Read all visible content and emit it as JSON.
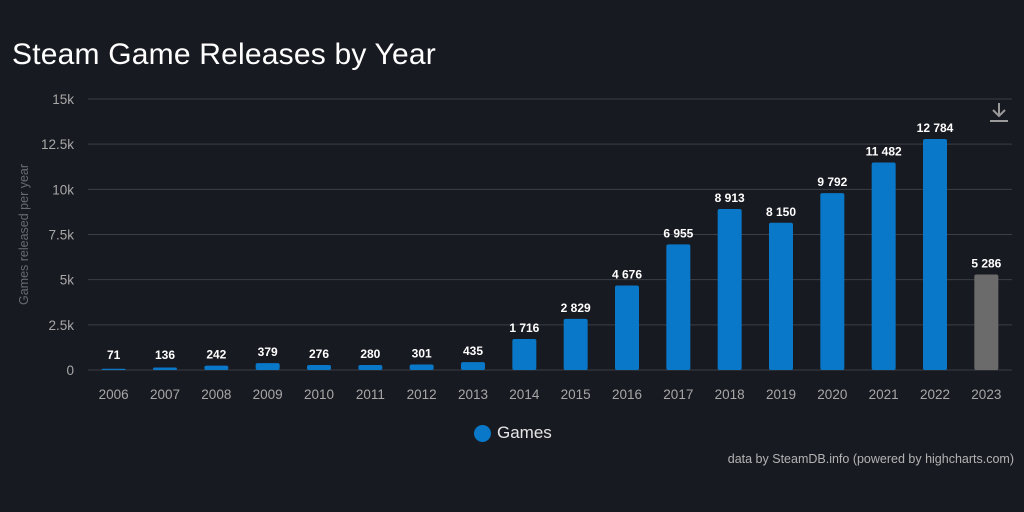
{
  "title": "Steam Game Releases by Year",
  "credits": "data by SteamDB.info (powered by highcharts.com)",
  "colors": {
    "bar": "#0a78c8",
    "bar_partial": "#6b6b6b",
    "grid": "#3c3f47",
    "axis_text": "#a7a7a7",
    "label_text": "#ffffff"
  },
  "download_icon": "download-icon",
  "chart_data": {
    "type": "bar",
    "categories": [
      "2006",
      "2007",
      "2008",
      "2009",
      "2010",
      "2011",
      "2012",
      "2013",
      "2014",
      "2015",
      "2016",
      "2017",
      "2018",
      "2019",
      "2020",
      "2021",
      "2022",
      "2023"
    ],
    "series": [
      {
        "name": "Games",
        "values": [
          71,
          136,
          242,
          379,
          276,
          280,
          301,
          435,
          1716,
          2829,
          4676,
          6955,
          8913,
          8150,
          9792,
          11482,
          12784,
          5286
        ]
      }
    ],
    "data_labels": [
      "71",
      "136",
      "242",
      "379",
      "276",
      "280",
      "301",
      "435",
      "1 716",
      "2 829",
      "4 676",
      "6 955",
      "8 913",
      "8 150",
      "9 792",
      "11 482",
      "12 784",
      "5 286"
    ],
    "highlight_last_gray": true,
    "ylabel": "Games released per year",
    "ylim": [
      0,
      15000
    ],
    "yticks": [
      0,
      2500,
      5000,
      7500,
      10000,
      12500,
      15000
    ],
    "ytick_labels": [
      "0",
      "2.5k",
      "5k",
      "7.5k",
      "10k",
      "12.5k",
      "15k"
    ],
    "grid": true,
    "legend": "bottom-center"
  }
}
